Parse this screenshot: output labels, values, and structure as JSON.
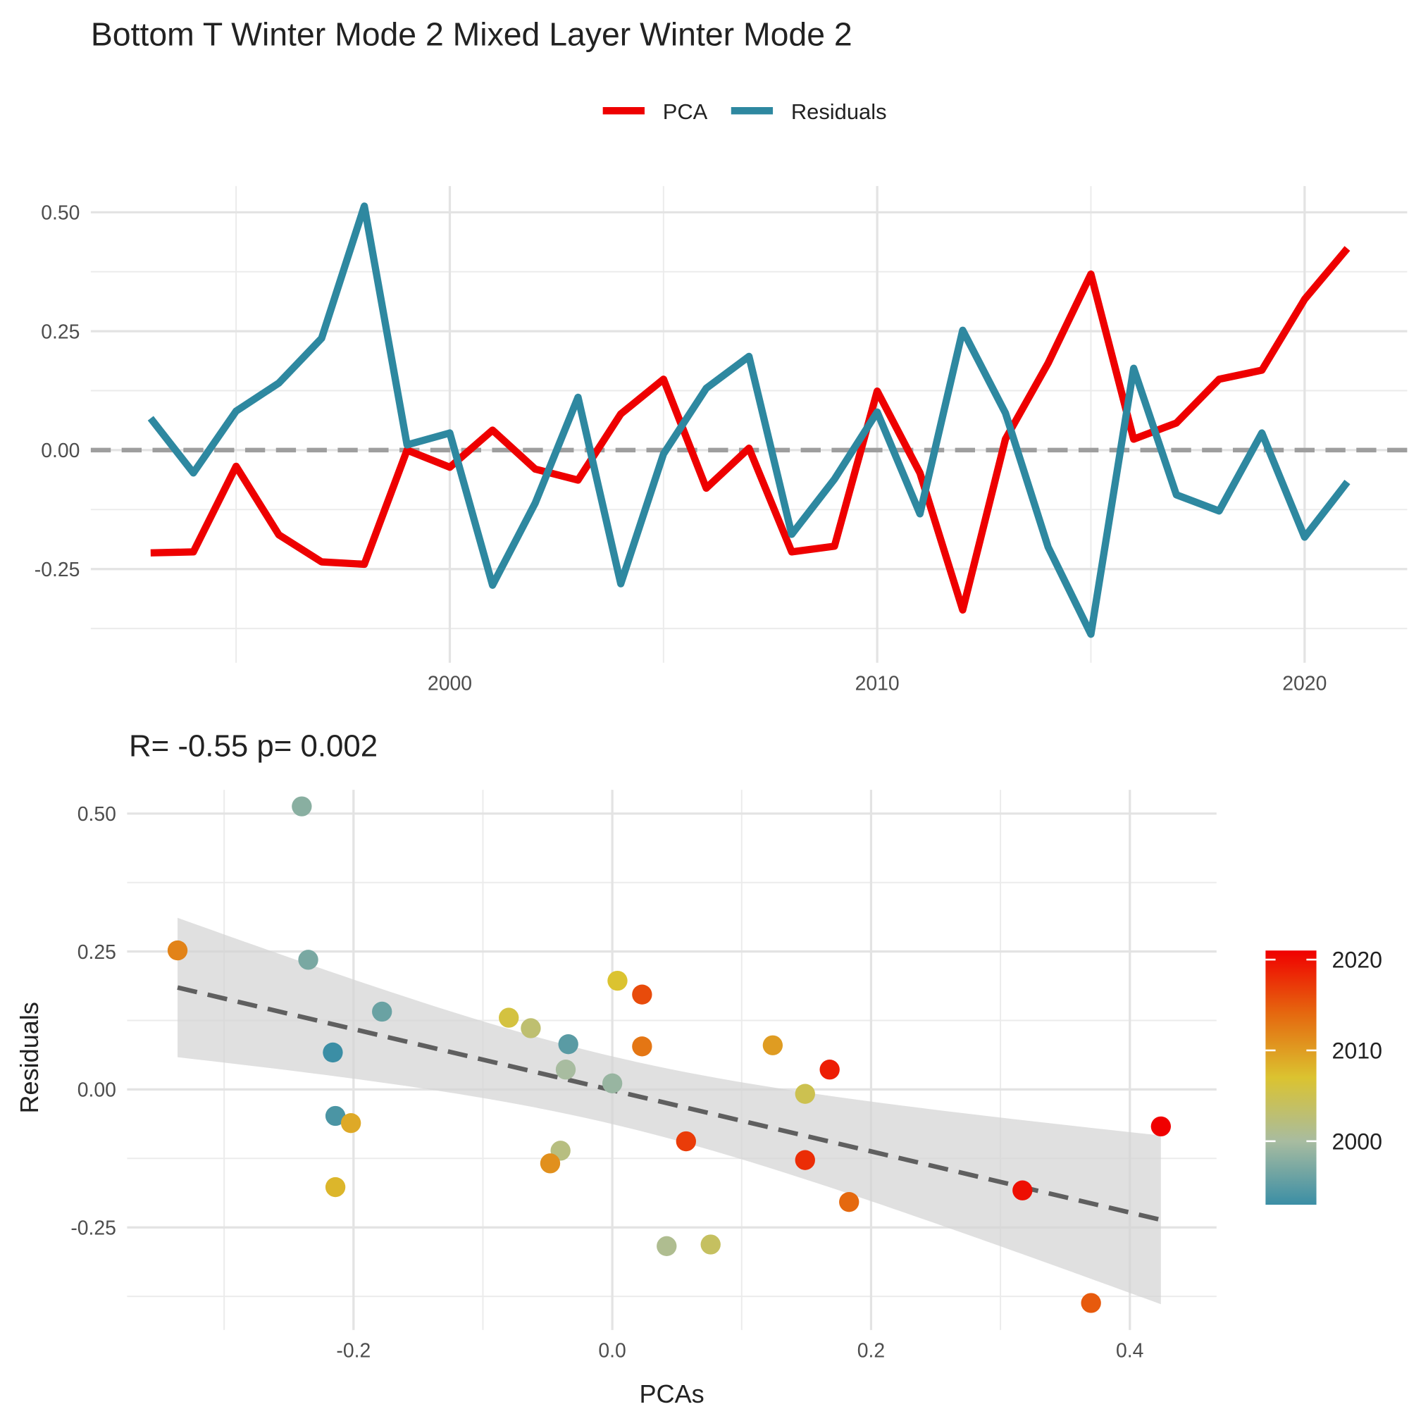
{
  "chart_data": [
    {
      "type": "line",
      "title": "Bottom T Winter Mode 2 Mixed Layer Winter Mode 2",
      "x": [
        1993,
        1994,
        1995,
        1996,
        1997,
        1998,
        1999,
        2000,
        2001,
        2002,
        2003,
        2004,
        2005,
        2006,
        2007,
        2008,
        2009,
        2010,
        2011,
        2012,
        2013,
        2014,
        2015,
        2016,
        2017,
        2018,
        2019,
        2020,
        2021
      ],
      "series": [
        {
          "name": "PCA",
          "color": "#ee0000",
          "values": [
            -0.216,
            -0.214,
            -0.034,
            -0.178,
            -0.235,
            -0.24,
            0.0,
            -0.036,
            0.042,
            -0.04,
            -0.063,
            0.076,
            0.149,
            -0.08,
            0.004,
            -0.214,
            -0.202,
            0.124,
            -0.048,
            -0.336,
            0.023,
            0.183,
            0.37,
            0.023,
            0.057,
            0.149,
            0.168,
            0.317,
            0.424
          ]
        },
        {
          "name": "Residuals",
          "color": "#2e88a0",
          "values": [
            0.067,
            -0.048,
            0.082,
            0.141,
            0.235,
            0.513,
            0.011,
            0.036,
            -0.284,
            -0.111,
            0.111,
            -0.281,
            -0.008,
            0.13,
            0.197,
            -0.177,
            -0.061,
            0.08,
            -0.134,
            0.252,
            0.078,
            -0.204,
            -0.387,
            0.172,
            -0.094,
            -0.128,
            0.036,
            -0.183,
            -0.067
          ]
        }
      ],
      "xlim": [
        1991.6,
        2022.4
      ],
      "xticks": [
        2000,
        2010,
        2020
      ],
      "ylim": [
        -0.447,
        0.555
      ],
      "yticks": [
        {
          "value": -0.25,
          "label": "-0.25"
        },
        {
          "value": 0,
          "label": "0.00"
        },
        {
          "value": 0.25,
          "label": "0.25"
        },
        {
          "value": 0.5,
          "label": "0.50"
        }
      ],
      "reference_line": 0,
      "grid": true,
      "legend": "top"
    },
    {
      "type": "scatter",
      "title": "R= -0.55  p= 0.002",
      "x_label": "PCAs",
      "y_label": "Residuals",
      "x": [
        -0.216,
        -0.214,
        -0.034,
        -0.178,
        -0.235,
        -0.24,
        0.0,
        -0.036,
        0.042,
        -0.04,
        -0.063,
        0.076,
        0.149,
        -0.08,
        0.004,
        -0.214,
        -0.202,
        0.124,
        -0.048,
        -0.336,
        0.023,
        0.183,
        0.37,
        0.023,
        0.057,
        0.149,
        0.168,
        0.317,
        0.424
      ],
      "values": [
        0.067,
        -0.048,
        0.082,
        0.141,
        0.235,
        0.513,
        0.011,
        0.036,
        -0.284,
        -0.111,
        0.111,
        -0.281,
        -0.008,
        0.13,
        0.197,
        -0.177,
        -0.061,
        0.08,
        -0.134,
        0.252,
        0.078,
        -0.204,
        -0.387,
        0.172,
        -0.094,
        -0.128,
        0.036,
        -0.183,
        -0.067
      ],
      "years": [
        1993,
        1994,
        1995,
        1996,
        1997,
        1998,
        1999,
        2000,
        2001,
        2002,
        2003,
        2004,
        2005,
        2006,
        2007,
        2008,
        2009,
        2010,
        2011,
        2012,
        2013,
        2014,
        2015,
        2016,
        2017,
        2018,
        2019,
        2020,
        2021
      ],
      "xlim": [
        -0.375,
        0.467
      ],
      "xticks": [
        -0.2,
        {
          "value": 0,
          "label": "0.0"
        },
        0.2,
        0.4
      ],
      "ylim": [
        -0.436,
        0.543
      ],
      "yticks": [
        {
          "value": -0.25,
          "label": "-0.25"
        },
        {
          "value": 0,
          "label": "0.00"
        },
        {
          "value": 0.25,
          "label": "0.25"
        },
        {
          "value": 0.5,
          "label": "0.50"
        }
      ],
      "grid": true,
      "fit": "linear",
      "color_scale": {
        "lim": [
          1993,
          2021
        ],
        "colors": [
          "#3b8ea5",
          "#a8bca0",
          "#dbc330",
          "#e5690f",
          "#f00000"
        ],
        "ticks": [
          2000,
          2010,
          2020
        ]
      }
    }
  ]
}
